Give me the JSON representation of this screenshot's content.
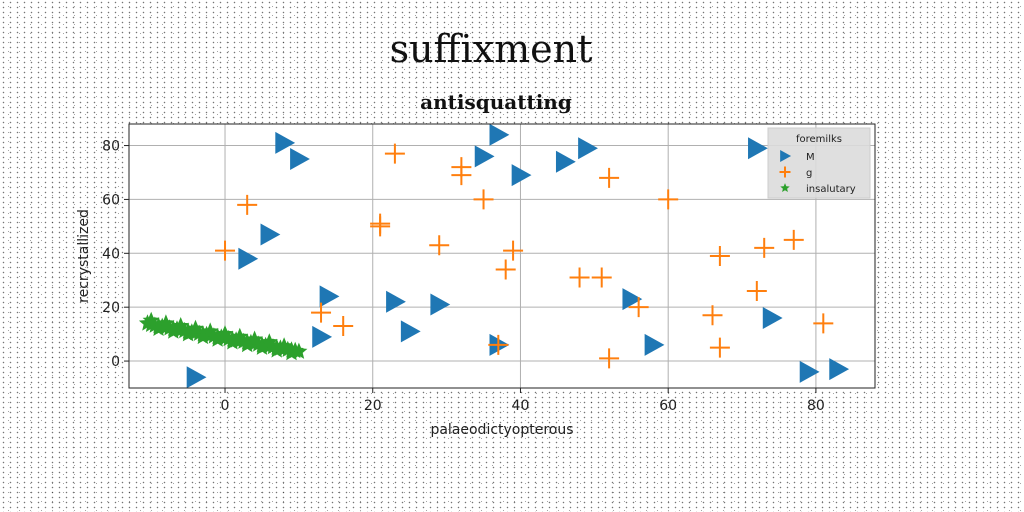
{
  "suptitle": "suffixment",
  "chart_data": {
    "type": "scatter",
    "title": "antisquatting",
    "xlabel": "palaeodictyopterous",
    "ylabel": "recrystallized",
    "xlim": [
      -13,
      88
    ],
    "ylim": [
      -10,
      88
    ],
    "xticks": [
      0,
      20,
      40,
      60,
      80
    ],
    "yticks": [
      0,
      20,
      40,
      60,
      80
    ],
    "grid": true,
    "legend": {
      "title": "foremilks",
      "placement": "top-right"
    },
    "series": [
      {
        "name": "M",
        "marker": "triangle-right",
        "color": "#1f77b4",
        "points": [
          [
            -4,
            -6
          ],
          [
            3,
            38
          ],
          [
            6,
            47
          ],
          [
            8,
            81
          ],
          [
            10,
            75
          ],
          [
            13,
            9
          ],
          [
            14,
            24
          ],
          [
            23,
            22
          ],
          [
            25,
            11
          ],
          [
            29,
            21
          ],
          [
            35,
            76
          ],
          [
            37,
            84
          ],
          [
            37,
            6
          ],
          [
            40,
            69
          ],
          [
            46,
            74
          ],
          [
            49,
            79
          ],
          [
            55,
            23
          ],
          [
            58,
            6
          ],
          [
            72,
            79
          ],
          [
            74,
            16
          ],
          [
            79,
            -4
          ],
          [
            83,
            -3
          ]
        ]
      },
      {
        "name": "g",
        "marker": "plus",
        "color": "#ff7f0e",
        "points": [
          [
            0,
            41
          ],
          [
            3,
            58
          ],
          [
            13,
            18
          ],
          [
            16,
            13
          ],
          [
            21,
            50
          ],
          [
            21,
            51
          ],
          [
            23,
            77
          ],
          [
            29,
            43
          ],
          [
            32,
            72
          ],
          [
            32,
            69
          ],
          [
            35,
            60
          ],
          [
            37,
            6
          ],
          [
            38,
            34
          ],
          [
            39,
            41
          ],
          [
            48,
            31
          ],
          [
            51,
            31
          ],
          [
            52,
            68
          ],
          [
            52,
            1
          ],
          [
            56,
            20
          ],
          [
            60,
            60
          ],
          [
            66,
            17
          ],
          [
            67,
            39
          ],
          [
            67,
            5
          ],
          [
            72,
            26
          ],
          [
            73,
            42
          ],
          [
            77,
            45
          ],
          [
            81,
            14
          ]
        ]
      },
      {
        "name": "insalutary",
        "marker": "star",
        "color": "#2ca02c",
        "points": [
          [
            -10.5,
            14
          ],
          [
            -10,
            13.5
          ],
          [
            -9.5,
            13.2
          ],
          [
            -9,
            13
          ],
          [
            -8.5,
            12.8
          ],
          [
            -8,
            12.5
          ],
          [
            -7.5,
            12.2
          ],
          [
            -7,
            12
          ],
          [
            -6.5,
            11.8
          ],
          [
            -6,
            11.5
          ],
          [
            -5.5,
            11.2
          ],
          [
            -5,
            11
          ],
          [
            -4.5,
            10.7
          ],
          [
            -4,
            10.5
          ],
          [
            -3.5,
            10.2
          ],
          [
            -3,
            10
          ],
          [
            -2.5,
            9.8
          ],
          [
            -2,
            9.5
          ],
          [
            -1.5,
            9.2
          ],
          [
            -1,
            9
          ],
          [
            -0.5,
            8.8
          ],
          [
            0,
            8.5
          ],
          [
            0.5,
            8.2
          ],
          [
            1,
            8
          ],
          [
            1.5,
            7.7
          ],
          [
            2,
            7.5
          ],
          [
            2.5,
            7.2
          ],
          [
            3,
            7
          ],
          [
            3.5,
            6.8
          ],
          [
            4,
            6.5
          ],
          [
            4.5,
            6.2
          ],
          [
            5,
            6
          ],
          [
            5.5,
            5.7
          ],
          [
            6,
            5.5
          ],
          [
            6.5,
            5.2
          ],
          [
            7,
            5
          ],
          [
            7.5,
            4.7
          ],
          [
            8,
            4.5
          ],
          [
            8.5,
            4.2
          ],
          [
            9,
            4
          ],
          [
            9.5,
            3.8
          ],
          [
            10,
            3.5
          ],
          [
            -10,
            15
          ],
          [
            -8,
            14
          ],
          [
            -6,
            13
          ],
          [
            -4,
            12
          ],
          [
            -2,
            11
          ],
          [
            0,
            10
          ],
          [
            2,
            9
          ],
          [
            4,
            8
          ],
          [
            6,
            7
          ],
          [
            8,
            5.5
          ],
          [
            -9,
            12
          ],
          [
            -7,
            11
          ],
          [
            -5,
            10
          ],
          [
            -3,
            9
          ],
          [
            -1,
            8
          ],
          [
            1,
            7
          ],
          [
            3,
            6
          ],
          [
            5,
            5
          ],
          [
            7,
            4
          ],
          [
            9,
            3
          ]
        ]
      }
    ]
  }
}
